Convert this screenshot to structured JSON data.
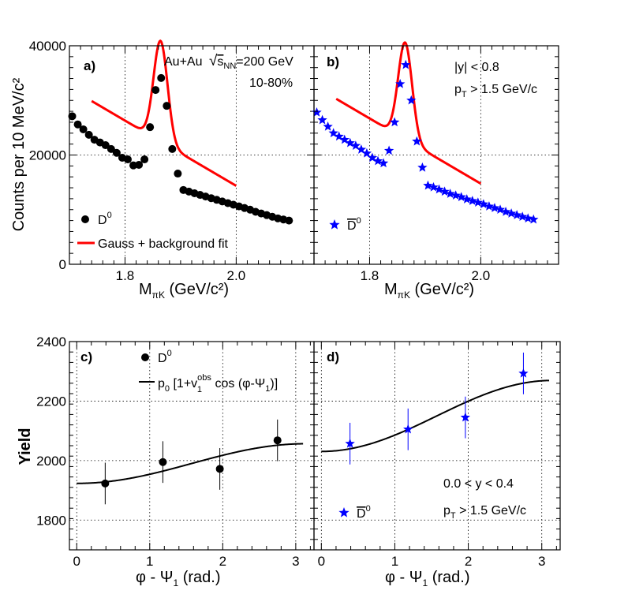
{
  "chart_data": [
    {
      "panel_id": "a)",
      "type": "scatter",
      "xlim": [
        1.7,
        2.14
      ],
      "ylim": [
        0,
        40000
      ],
      "xticks": [
        "1.8",
        "2.0"
      ],
      "yticks": [
        "0",
        "20000",
        "40000"
      ],
      "ylabel": "Counts per 10 MeV/c²",
      "xlabel_main": "M",
      "xlabel_sub": "πK",
      "xlabel_tail": " (GeV/c²)",
      "info_line1": "Au+Au",
      "info_sqrt_symbol": "√",
      "info_sqrt_s": "s",
      "info_sqrt_sub": "NN",
      "info_energy": "=200 GeV",
      "info_line2": "10-80%",
      "legend_marker_label": "D",
      "legend_marker_sup": "0",
      "legend_fit_label": "Gauss + background fit",
      "marker_color": "#000000",
      "marker": "circle",
      "fit_color": "#ff0000",
      "fit_range": [
        1.74,
        2.0
      ],
      "fit_params": {
        "a": 26300,
        "b": -59700,
        "amp": 18400,
        "mu": 1.864,
        "sigma": 0.0125
      },
      "points": {
        "x": [
          1.705,
          1.715,
          1.725,
          1.735,
          1.745,
          1.755,
          1.765,
          1.775,
          1.785,
          1.795,
          1.805,
          1.815,
          1.825,
          1.835,
          1.845,
          1.855,
          1.865,
          1.875,
          1.885,
          1.895,
          1.905,
          1.915,
          1.925,
          1.935,
          1.945,
          1.955,
          1.965,
          1.975,
          1.985,
          1.995,
          2.005,
          2.015,
          2.025,
          2.035,
          2.045,
          2.055,
          2.065,
          2.075,
          2.085,
          2.095
        ],
        "y": [
          27100,
          25600,
          24700,
          23700,
          22800,
          22300,
          21800,
          21100,
          20400,
          19500,
          19200,
          18100,
          18200,
          19200,
          25100,
          31900,
          34100,
          29000,
          21100,
          16600,
          13600,
          13300,
          13000,
          12700,
          12400,
          12100,
          11800,
          11500,
          11200,
          10900,
          10600,
          10300,
          10000,
          9600,
          9300,
          9000,
          8700,
          8400,
          8200,
          8000
        ]
      }
    },
    {
      "panel_id": "b)",
      "type": "scatter",
      "xlim": [
        1.7,
        2.14
      ],
      "ylim": [
        0,
        40000
      ],
      "xticks": [
        "1.8",
        "2.0"
      ],
      "xlabel_main": "M",
      "xlabel_sub": "πK",
      "xlabel_tail": " (GeV/c²)",
      "cut_line1": "|y| < 0.8",
      "cut_pt_main": "p",
      "cut_pt_sub": "T",
      "cut_pt_tail": " > 1.5 GeV/c",
      "legend_marker_label": "D",
      "legend_marker_sup": "0",
      "marker_color": "#0000ff",
      "marker": "star",
      "fit_color": "#ff0000",
      "fit_range": [
        1.74,
        2.0
      ],
      "fit_params": {
        "a": 26700,
        "b": -59700,
        "amp": 17700,
        "mu": 1.864,
        "sigma": 0.0125
      },
      "points": {
        "x": [
          1.705,
          1.715,
          1.725,
          1.735,
          1.745,
          1.755,
          1.765,
          1.775,
          1.785,
          1.795,
          1.805,
          1.815,
          1.825,
          1.835,
          1.845,
          1.855,
          1.865,
          1.875,
          1.885,
          1.895,
          1.905,
          1.915,
          1.925,
          1.935,
          1.945,
          1.955,
          1.965,
          1.975,
          1.985,
          1.995,
          2.005,
          2.015,
          2.025,
          2.035,
          2.045,
          2.055,
          2.065,
          2.075,
          2.085,
          2.095
        ],
        "y": [
          27800,
          26400,
          25200,
          24000,
          23400,
          22800,
          22200,
          21700,
          21000,
          20300,
          19500,
          18900,
          18500,
          20800,
          26000,
          33000,
          36500,
          30000,
          22500,
          17700,
          14400,
          14100,
          13700,
          13300,
          12900,
          12600,
          12300,
          11900,
          11600,
          11300,
          11000,
          10600,
          10300,
          10000,
          9600,
          9300,
          9000,
          8700,
          8400,
          8200
        ]
      }
    },
    {
      "panel_id": "c)",
      "type": "scatter",
      "xlim": [
        -0.1,
        3.25
      ],
      "ylim": [
        1700,
        2400
      ],
      "xticks": [
        "0",
        "1",
        "2",
        "3"
      ],
      "yticks": [
        "1800",
        "2000",
        "2200",
        "2400"
      ],
      "ylabel": "Yield",
      "xlabel_main": "φ - Ψ",
      "xlabel_sub": "1",
      "xlabel_tail": " (rad.)",
      "legend_marker_label": "D",
      "legend_marker_sup": "0",
      "legend_fit_p0": "p",
      "legend_fit_p0_sub": "0",
      "legend_fit_mid": " [1+v",
      "legend_fit_v_sup": "obs",
      "legend_fit_v_sub": "1",
      "legend_fit_cos": " cos (φ-Ψ",
      "legend_fit_psi_sub": "1",
      "legend_fit_close": ")]",
      "marker_color": "#000000",
      "marker": "circle",
      "fit_color": "#000000",
      "fit_range": [
        0,
        3.1
      ],
      "fit_params": {
        "p0": 1990,
        "v1": -0.0335
      },
      "points": {
        "x": [
          0.39,
          1.18,
          1.96,
          2.75
        ],
        "y": [
          1923,
          1995,
          1972,
          2068
        ],
        "err": [
          70,
          70,
          70,
          70
        ]
      }
    },
    {
      "panel_id": "d)",
      "type": "scatter",
      "xlim": [
        -0.1,
        3.25
      ],
      "ylim": [
        1700,
        2400
      ],
      "xticks": [
        "0",
        "1",
        "2",
        "3"
      ],
      "xlabel_main": "φ - Ψ",
      "xlabel_sub": "1",
      "xlabel_tail": " (rad.)",
      "cut_line1": "0.0 < y < 0.4",
      "cut_pt_main": "p",
      "cut_pt_sub": "T",
      "cut_pt_tail": " > 1.5 GeV/c",
      "legend_marker_label": "D",
      "legend_marker_sup": "0",
      "marker_color": "#0000ff",
      "marker": "star",
      "fit_color": "#000000",
      "fit_range": [
        0,
        3.1
      ],
      "fit_params": {
        "p0": 2150,
        "v1": -0.0555
      },
      "points": {
        "x": [
          0.39,
          1.18,
          1.96,
          2.75
        ],
        "y": [
          2057,
          2105,
          2145,
          2293
        ],
        "err": [
          70,
          70,
          70,
          70
        ]
      }
    }
  ]
}
